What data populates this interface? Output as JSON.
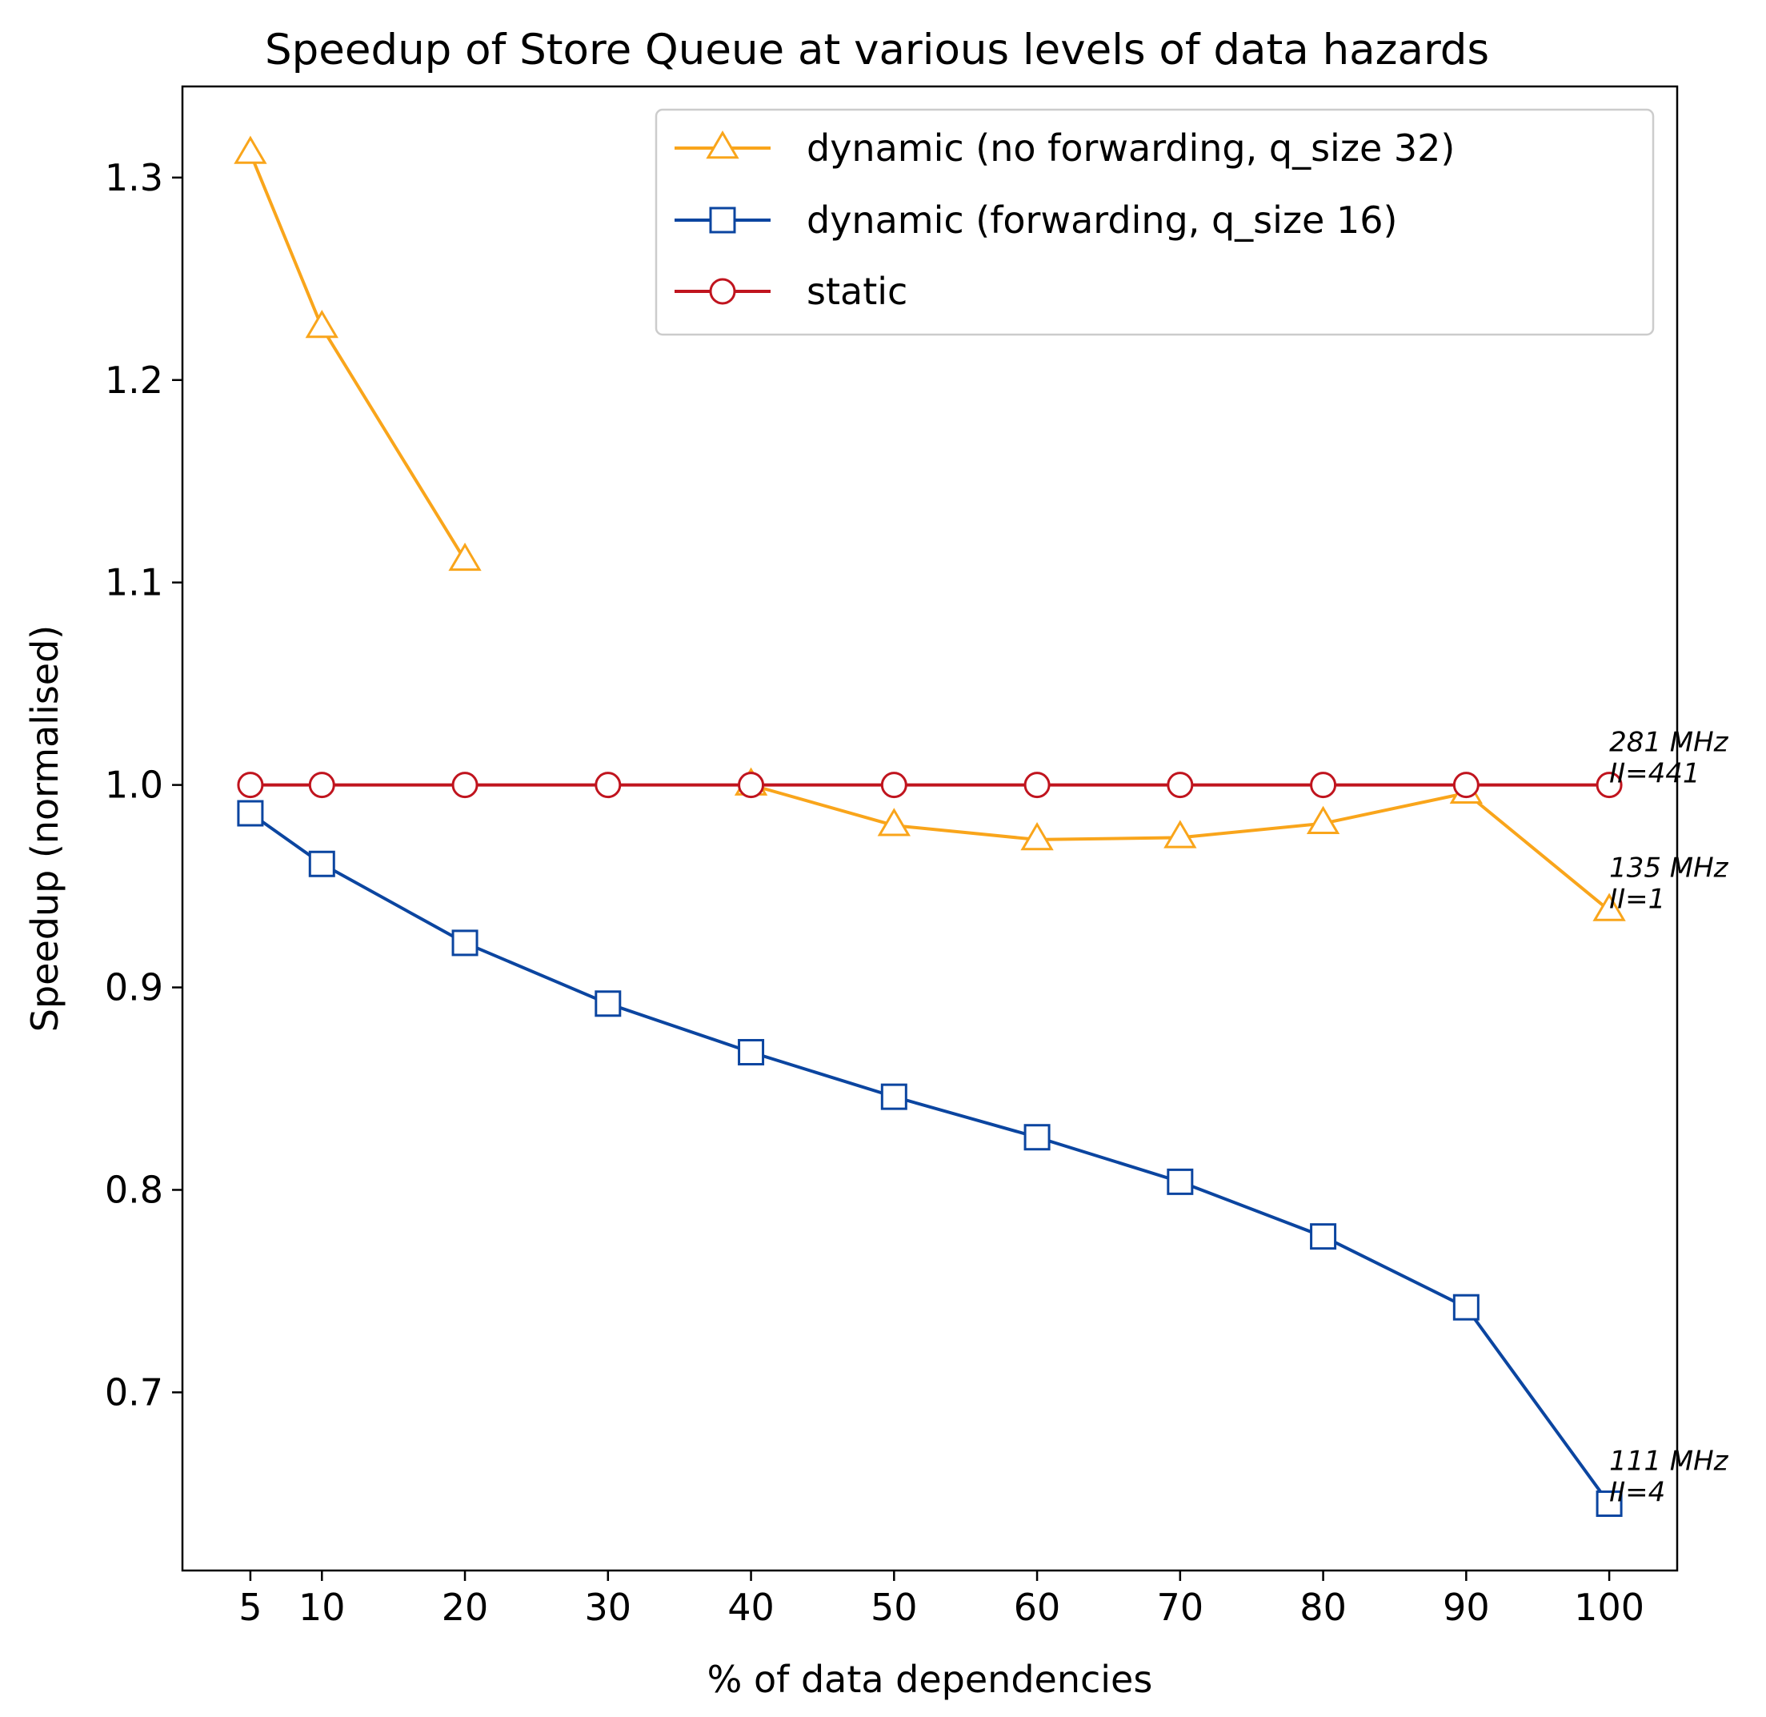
{
  "chart_data": {
    "type": "line",
    "title": "Speedup of Store Queue at various levels of data hazards",
    "xlabel": "% of data dependencies",
    "ylabel": "Speedup (normalised)",
    "xlim": [
      0.25,
      104.75
    ],
    "ylim": [
      0.612,
      1.345
    ],
    "xticks": [
      5,
      10,
      20,
      30,
      40,
      50,
      60,
      70,
      80,
      90,
      100
    ],
    "xtick_labels": [
      "5",
      "10",
      "20",
      "30",
      "40",
      "50",
      "60",
      "70",
      "80",
      "90",
      "100"
    ],
    "yticks": [
      0.7,
      0.8,
      0.9,
      1.0,
      1.1,
      1.2,
      1.3
    ],
    "ytick_labels": [
      "0.7",
      "0.8",
      "0.9",
      "1.0",
      "1.1",
      "1.2",
      "1.3"
    ],
    "grid": false,
    "legend_position": "top-right",
    "series": [
      {
        "name": "dynamic (no forwarding, q_size 32)",
        "color": "#f9a51b",
        "marker": "triangle",
        "x": [
          5,
          10,
          20,
          40,
          50,
          60,
          70,
          80,
          90,
          100
        ],
        "y": [
          1.312,
          1.226,
          1.111,
          1.0,
          0.98,
          0.973,
          0.974,
          0.981,
          0.996,
          0.938
        ],
        "segments": [
          [
            0,
            2
          ],
          [
            3,
            9
          ]
        ]
      },
      {
        "name": "dynamic (forwarding, q_size 16)",
        "color": "#0b45a0",
        "marker": "square",
        "x": [
          5,
          10,
          20,
          30,
          40,
          50,
          60,
          70,
          80,
          90,
          100
        ],
        "y": [
          0.986,
          0.961,
          0.922,
          0.892,
          0.868,
          0.846,
          0.826,
          0.804,
          0.777,
          0.742,
          0.645
        ],
        "segments": [
          [
            0,
            10
          ]
        ]
      },
      {
        "name": "static",
        "color": "#c0141e",
        "marker": "circle",
        "x": [
          5,
          10,
          20,
          30,
          40,
          50,
          60,
          70,
          80,
          90,
          100
        ],
        "y": [
          1.0,
          1.0,
          1.0,
          1.0,
          1.0,
          1.0,
          1.0,
          1.0,
          1.0,
          1.0,
          1.0
        ],
        "segments": [
          [
            0,
            10
          ]
        ]
      }
    ],
    "annotations": [
      {
        "x": 100,
        "y": 1.0,
        "lines": [
          "281 MHz",
          "II=441"
        ]
      },
      {
        "x": 100,
        "y": 0.938,
        "lines": [
          "135 MHz",
          "II=1"
        ]
      },
      {
        "x": 100,
        "y": 0.645,
        "lines": [
          "111 MHz",
          "II=4"
        ]
      }
    ]
  }
}
